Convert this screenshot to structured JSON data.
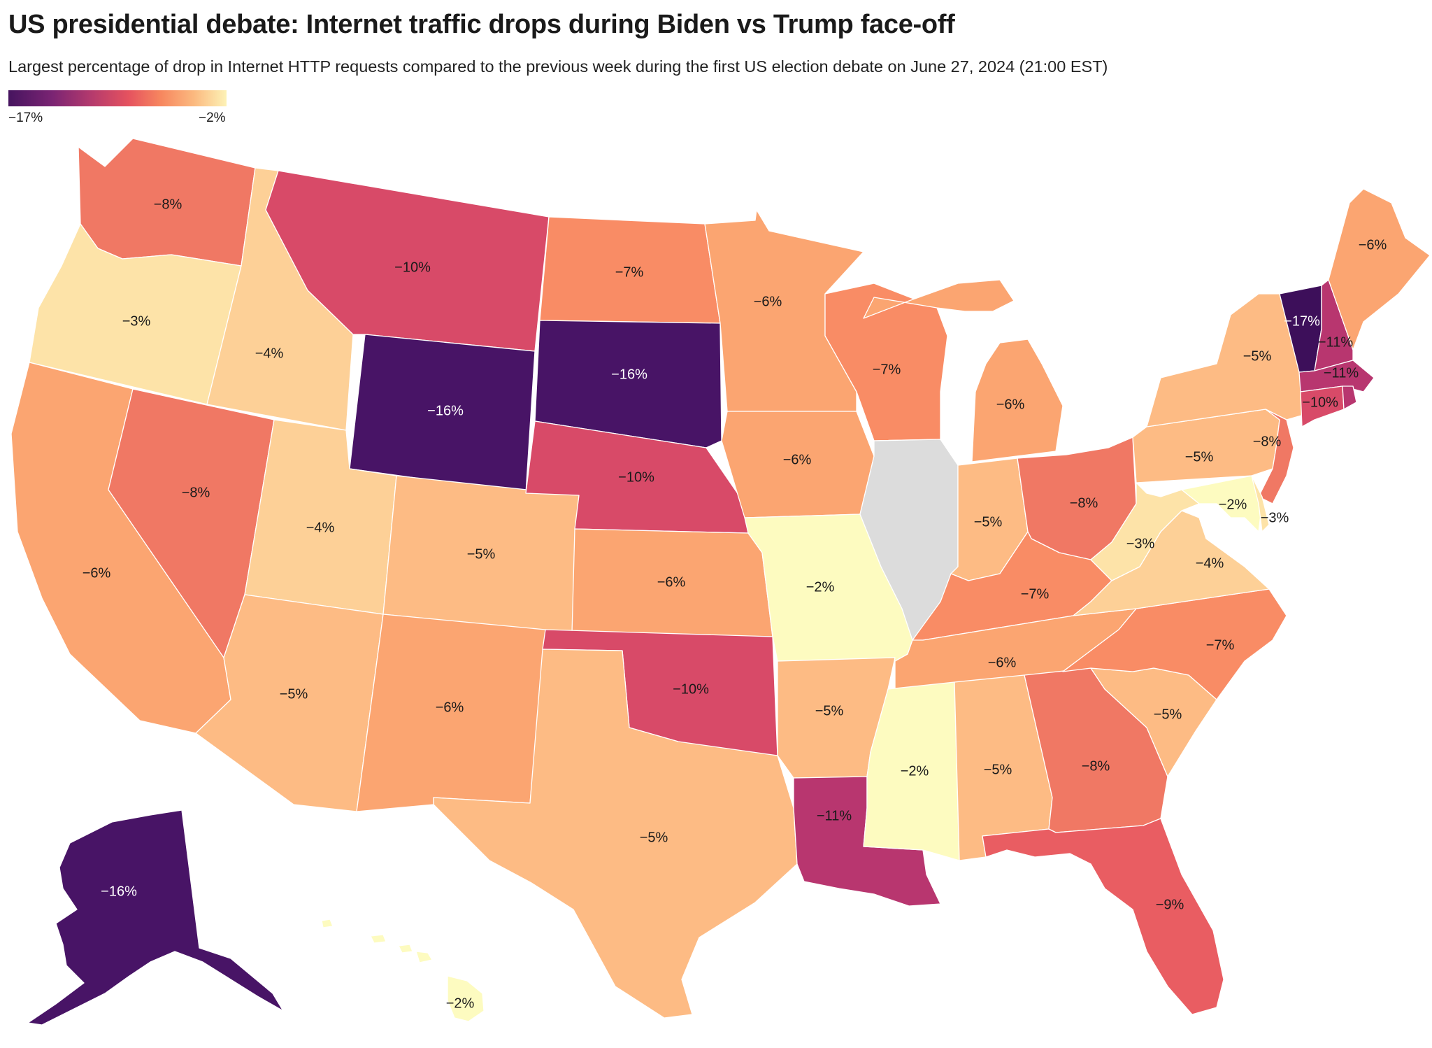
{
  "title": "US presidential debate: Internet traffic drops during Biden vs Trump face-off",
  "subtitle": "Largest percentage of drop in Internet HTTP requests compared to the previous week during the first US election debate on June 27, 2024 (21:00 EST)",
  "legend": {
    "min_label": "−17%",
    "max_label": "−2%",
    "min_value": -17,
    "max_value": -2,
    "no_data_color": "#dcdcdc"
  },
  "colors": {
    "-17": "#3d0f5a",
    "-16": "#481466",
    "-11": "#b8366f",
    "-10": "#d84a68",
    "-9": "#e95d62",
    "-8": "#f07864",
    "-7": "#f98c65",
    "-6": "#fba571",
    "-5": "#fdbb84",
    "-4": "#fdd097",
    "-3": "#fde3a8",
    "-2": "#fdfbc0"
  },
  "states": [
    {
      "id": "WA",
      "value": -8,
      "label": "−8%"
    },
    {
      "id": "OR",
      "value": -3,
      "label": "−3%"
    },
    {
      "id": "CA",
      "value": -6,
      "label": "−6%"
    },
    {
      "id": "NV",
      "value": -8,
      "label": "−8%"
    },
    {
      "id": "ID",
      "value": -4,
      "label": "−4%"
    },
    {
      "id": "MT",
      "value": -10,
      "label": "−10%"
    },
    {
      "id": "WY",
      "value": -16,
      "label": "−16%"
    },
    {
      "id": "UT",
      "value": -4,
      "label": "−4%"
    },
    {
      "id": "AZ",
      "value": -5,
      "label": "−5%"
    },
    {
      "id": "CO",
      "value": -5,
      "label": "−5%"
    },
    {
      "id": "NM",
      "value": -6,
      "label": "−6%"
    },
    {
      "id": "ND",
      "value": -7,
      "label": "−7%"
    },
    {
      "id": "SD",
      "value": -16,
      "label": "−16%"
    },
    {
      "id": "NE",
      "value": -10,
      "label": "−10%"
    },
    {
      "id": "KS",
      "value": -6,
      "label": "−6%"
    },
    {
      "id": "OK",
      "value": -10,
      "label": "−10%"
    },
    {
      "id": "TX",
      "value": -5,
      "label": "−5%"
    },
    {
      "id": "MN",
      "value": -6,
      "label": "−6%"
    },
    {
      "id": "IA",
      "value": -6,
      "label": "−6%"
    },
    {
      "id": "MO",
      "value": -2,
      "label": "−2%"
    },
    {
      "id": "AR",
      "value": -5,
      "label": "−5%"
    },
    {
      "id": "LA",
      "value": -11,
      "label": "−11%"
    },
    {
      "id": "WI",
      "value": -7,
      "label": "−7%"
    },
    {
      "id": "IL",
      "value": null,
      "label": ""
    },
    {
      "id": "MI",
      "value": -6,
      "label": "−6%"
    },
    {
      "id": "IN",
      "value": -5,
      "label": "−5%"
    },
    {
      "id": "OH",
      "value": -8,
      "label": "−8%"
    },
    {
      "id": "KY",
      "value": -7,
      "label": "−7%"
    },
    {
      "id": "TN",
      "value": -6,
      "label": "−6%"
    },
    {
      "id": "MS",
      "value": -2,
      "label": "−2%"
    },
    {
      "id": "AL",
      "value": -5,
      "label": "−5%"
    },
    {
      "id": "GA",
      "value": -8,
      "label": "−8%"
    },
    {
      "id": "FL",
      "value": -9,
      "label": "−9%"
    },
    {
      "id": "SC",
      "value": -5,
      "label": "−5%"
    },
    {
      "id": "NC",
      "value": -7,
      "label": "−7%"
    },
    {
      "id": "VA",
      "value": -4,
      "label": "−4%"
    },
    {
      "id": "WV",
      "value": -3,
      "label": "−3%"
    },
    {
      "id": "PA",
      "value": -5,
      "label": "−5%"
    },
    {
      "id": "NY",
      "value": -5,
      "label": "−5%"
    },
    {
      "id": "NJ",
      "value": -8,
      "label": "−8%"
    },
    {
      "id": "MD",
      "value": -2,
      "label": "−2%"
    },
    {
      "id": "DE",
      "value": -3,
      "label": "−3%"
    },
    {
      "id": "VT",
      "value": -17,
      "label": "−17%"
    },
    {
      "id": "NH",
      "value": -11,
      "label": "−11%"
    },
    {
      "id": "ME",
      "value": -6,
      "label": "−6%"
    },
    {
      "id": "MA",
      "value": -11,
      "label": "−11%"
    },
    {
      "id": "CT",
      "value": -10,
      "label": "−10%"
    },
    {
      "id": "RI",
      "value": -11,
      "label": ""
    },
    {
      "id": "AK",
      "value": -16,
      "label": "−16%"
    },
    {
      "id": "HI",
      "value": -2,
      "label": "−2%"
    }
  ]
}
